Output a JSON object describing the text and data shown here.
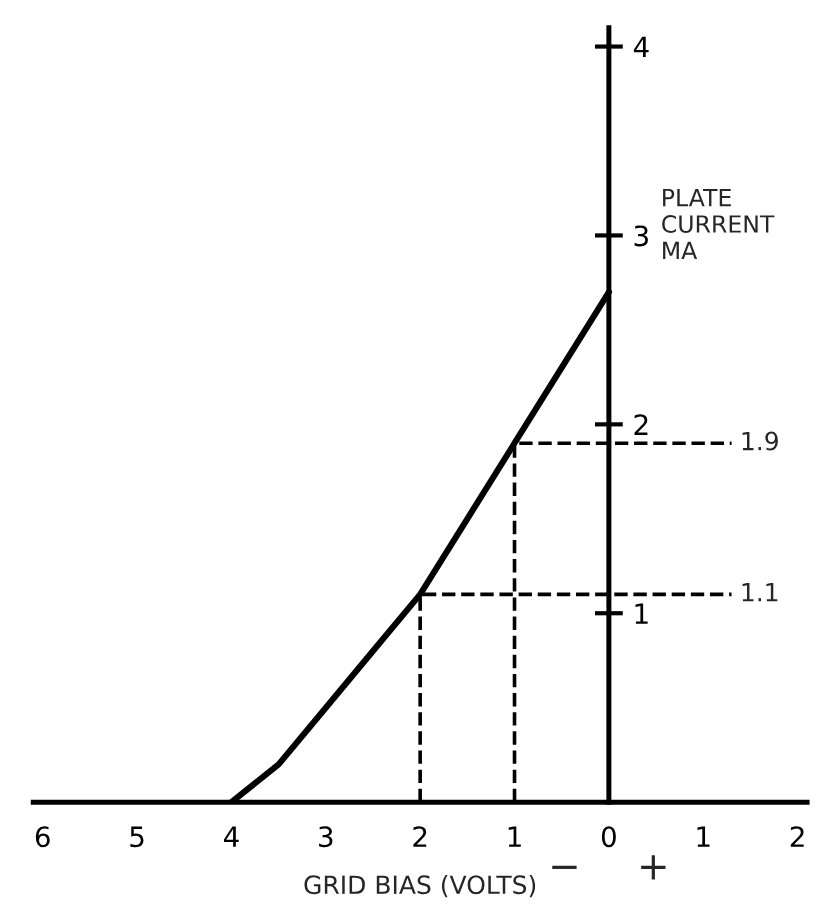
{
  "chart_data": {
    "type": "line",
    "xlabel": "GRID BIAS (VOLTS)",
    "ylabel": "PLATE\nCURRENT\nMA",
    "xlim": [
      -6.1,
      2.1
    ],
    "ylim": [
      0,
      4.1
    ],
    "xticks": [
      {
        "value": -6,
        "label": "6"
      },
      {
        "value": -5,
        "label": "5"
      },
      {
        "value": -4,
        "label": "4"
      },
      {
        "value": -3,
        "label": "3"
      },
      {
        "value": -2,
        "label": "2"
      },
      {
        "value": -1,
        "label": "1"
      },
      {
        "value": 0,
        "label": "0"
      },
      {
        "value": 1,
        "label": "1"
      },
      {
        "value": 2,
        "label": "2"
      }
    ],
    "yticks": [
      1,
      2,
      3,
      4
    ],
    "grid": false,
    "legend": false,
    "marker": "none",
    "series": [
      {
        "color": "#000000",
        "line_style": "solid",
        "x": [
          -4,
          -3.5,
          -3,
          -2.5,
          -2,
          -1.5,
          -1,
          -0.5,
          0
        ],
        "values": [
          0,
          0.2,
          0.5,
          0.8,
          1.1,
          1.5,
          1.9,
          2.3,
          2.7
        ]
      },
      {
        "color": "#000000",
        "line_style": "dashed",
        "x": [
          -2,
          -2,
          1.3
        ],
        "values": [
          0,
          1.1,
          1.1
        ]
      },
      {
        "color": "#000000",
        "line_style": "dashed",
        "x": [
          -1,
          -1,
          1.3
        ],
        "values": [
          0,
          1.9,
          1.9
        ]
      }
    ],
    "annotations": [
      {
        "text": "1.1",
        "x": 1.3,
        "y": 1.1
      },
      {
        "text": "1.9",
        "x": 1.3,
        "y": 1.9
      },
      "−",
      "+"
    ]
  }
}
